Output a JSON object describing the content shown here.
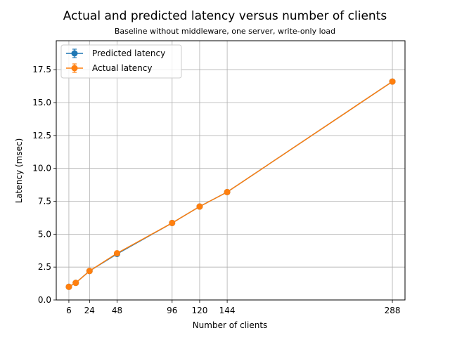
{
  "chart_data": {
    "type": "line",
    "title": "Actual and predicted latency versus number of clients",
    "subtitle": "Baseline without middleware, one server, write-only load",
    "xlabel": "Number of clients",
    "ylabel": "Latency (msec)",
    "xlim": [
      -5,
      299
    ],
    "ylim": [
      0,
      19.7
    ],
    "xticks": [
      6,
      24,
      48,
      96,
      120,
      144,
      288
    ],
    "yticks": [
      0.0,
      2.5,
      5.0,
      7.5,
      10.0,
      12.5,
      15.0,
      17.5
    ],
    "ytick_labels": [
      "0.0",
      "2.5",
      "5.0",
      "7.5",
      "10.0",
      "12.5",
      "15.0",
      "17.5"
    ],
    "grid": true,
    "legend_position": "top-left",
    "x": [
      6,
      12,
      24,
      48,
      96,
      120,
      144,
      288
    ],
    "series": [
      {
        "name": "Predicted latency",
        "color": "#1f77b4",
        "values": [
          1.0,
          1.3,
          2.2,
          3.5,
          5.85,
          7.1,
          8.2,
          16.6
        ]
      },
      {
        "name": "Actual latency",
        "color": "#ff7f0e",
        "values": [
          1.0,
          1.3,
          2.2,
          3.55,
          5.85,
          7.1,
          8.2,
          16.6
        ]
      }
    ]
  }
}
